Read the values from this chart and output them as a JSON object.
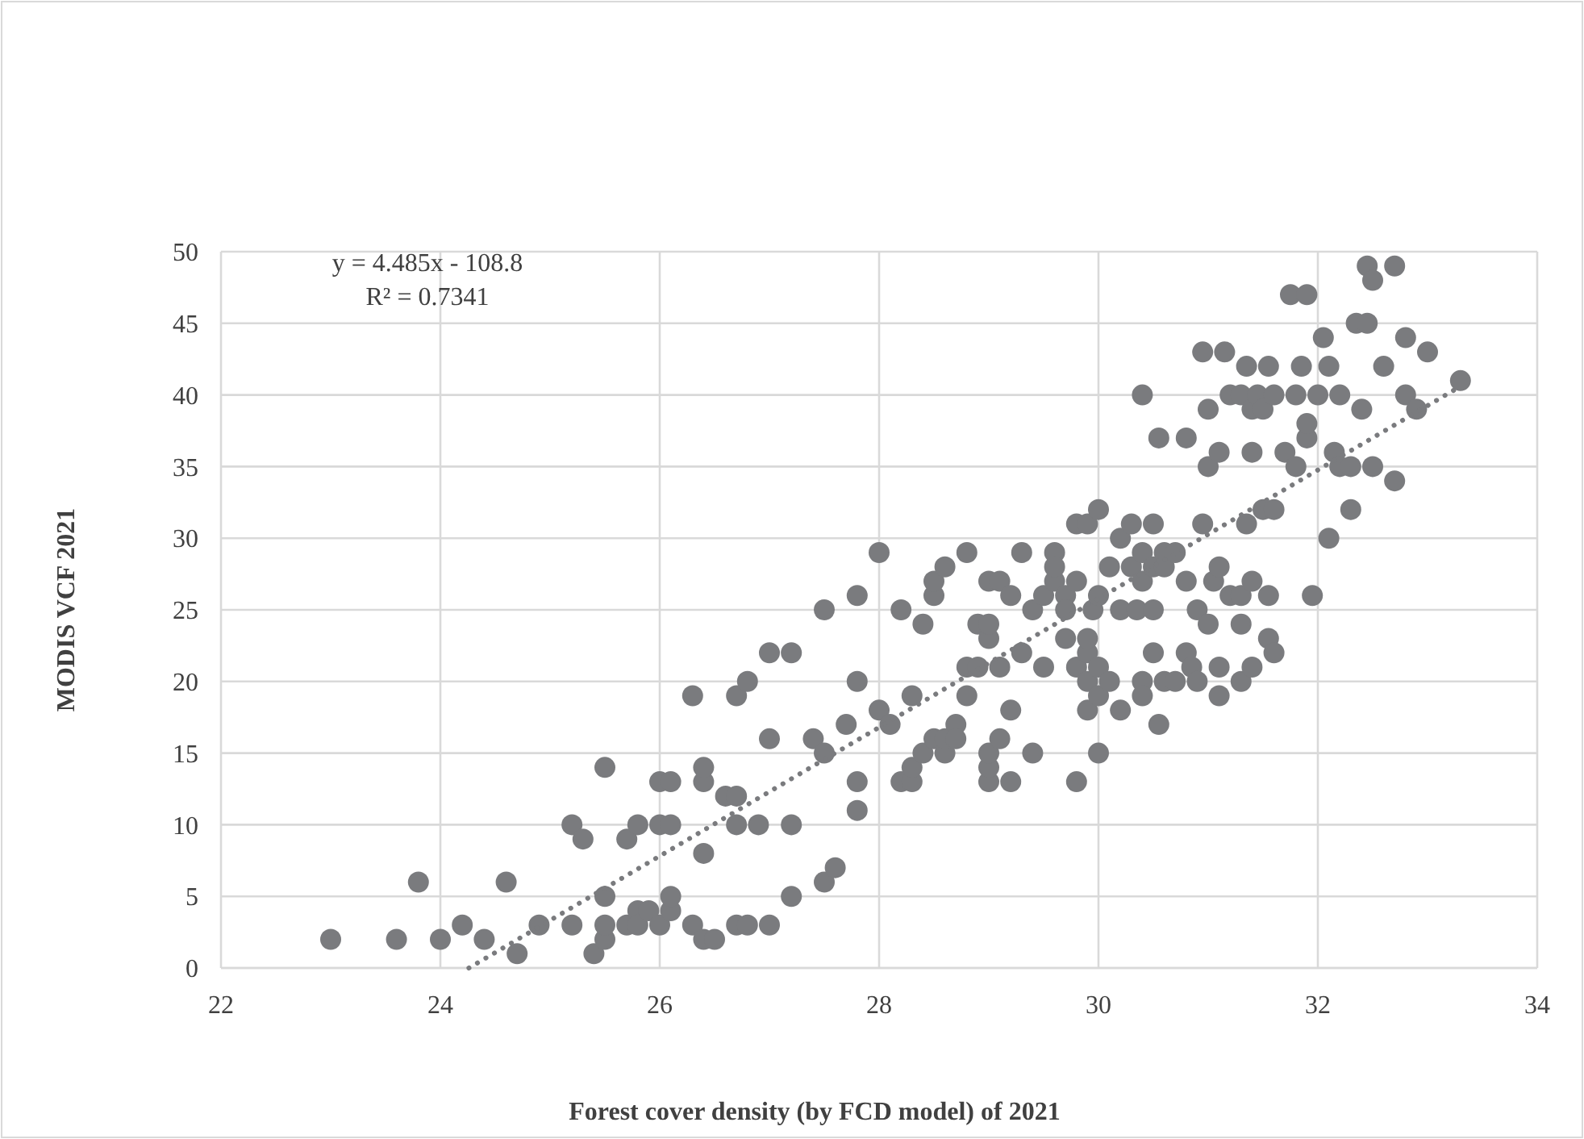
{
  "chart_data": {
    "type": "scatter",
    "xlabel": "Forest cover density (by FCD model) of 2021",
    "ylabel": "MODIS VCF 2021",
    "annotations": [
      "y = 4.485x - 108.8",
      "R² = 0.7341"
    ],
    "xlim": [
      22,
      34
    ],
    "xticks": [
      22,
      24,
      26,
      28,
      30,
      32,
      34
    ],
    "ylim": [
      0,
      50
    ],
    "yticks": [
      0,
      5,
      10,
      15,
      20,
      25,
      30,
      35,
      40,
      45,
      50
    ],
    "grid": true,
    "marker": "circle",
    "series": [
      {
        "color": "#7a7b7e",
        "x": [
          23.0,
          23.6,
          23.8,
          24.0,
          24.2,
          24.4,
          24.6,
          24.7,
          24.9,
          25.2,
          25.3,
          25.2,
          25.4,
          25.5,
          25.5,
          25.5,
          25.5,
          25.7,
          25.7,
          25.8,
          25.8,
          25.8,
          25.9,
          26.0,
          26.0,
          26.1,
          26.0,
          26.1,
          26.1,
          26.1,
          26.3,
          26.3,
          26.4,
          26.4,
          26.4,
          26.4,
          26.5,
          26.7,
          26.6,
          26.7,
          26.7,
          26.7,
          26.8,
          26.9,
          26.8,
          27.0,
          27.0,
          27.0,
          27.2,
          27.2,
          27.2,
          27.4,
          27.5,
          27.5,
          27.5,
          27.6,
          27.7,
          27.8,
          27.8,
          27.8,
          27.8,
          28.0,
          28.0,
          28.1,
          28.2,
          28.3,
          28.3,
          28.2,
          28.3,
          28.4,
          28.4,
          28.5,
          28.5,
          28.5,
          28.6,
          28.6,
          28.6,
          28.7,
          28.7,
          28.8,
          28.8,
          28.9,
          28.9,
          28.8,
          29.0,
          29.0,
          29.0,
          29.0,
          29.0,
          29.0,
          29.1,
          29.1,
          29.1,
          29.2,
          29.2,
          29.2,
          29.3,
          29.3,
          29.4,
          29.4,
          29.5,
          29.5,
          29.6,
          29.6,
          29.6,
          29.7,
          29.7,
          29.7,
          29.8,
          29.8,
          29.8,
          29.8,
          29.9,
          29.9,
          29.9,
          29.9,
          29.9,
          29.95,
          30.0,
          30.0,
          30.0,
          30.0,
          30.0,
          30.1,
          30.1,
          30.2,
          30.2,
          30.2,
          30.3,
          30.3,
          30.35,
          30.4,
          30.4,
          30.4,
          30.4,
          30.4,
          30.5,
          30.5,
          30.5,
          30.5,
          30.55,
          30.55,
          30.6,
          30.6,
          30.6,
          30.7,
          30.7,
          30.8,
          30.8,
          30.8,
          30.85,
          30.9,
          30.9,
          30.95,
          30.95,
          31.0,
          31.0,
          31.0,
          31.05,
          31.1,
          31.1,
          31.1,
          31.1,
          31.15,
          31.2,
          31.2,
          31.3,
          31.3,
          31.3,
          31.3,
          31.35,
          31.35,
          31.4,
          31.4,
          31.4,
          31.4,
          31.45,
          31.5,
          31.5,
          31.55,
          31.55,
          31.55,
          31.6,
          31.6,
          31.6,
          31.7,
          31.75,
          31.8,
          31.8,
          31.85,
          31.9,
          31.9,
          31.9,
          31.95,
          32.0,
          32.05,
          32.1,
          32.1,
          32.15,
          32.2,
          32.2,
          32.3,
          32.3,
          32.35,
          32.4,
          32.45,
          32.45,
          32.5,
          32.5,
          32.6,
          32.7,
          32.7,
          32.8,
          32.8,
          32.9,
          33.0,
          33.3
        ],
        "values": [
          2,
          2,
          6,
          2,
          3,
          2,
          6,
          1,
          3,
          10,
          9,
          3,
          1,
          2,
          3,
          14,
          5,
          3,
          9,
          10,
          4,
          3,
          4,
          3,
          13,
          13,
          10,
          10,
          4,
          5,
          3,
          19,
          13,
          8,
          14,
          2,
          2,
          10,
          12,
          3,
          12,
          19,
          20,
          10,
          3,
          22,
          3,
          16,
          22,
          5,
          10,
          16,
          6,
          25,
          15,
          7,
          17,
          26,
          13,
          20,
          11,
          29,
          18,
          17,
          13,
          13,
          14,
          25,
          19,
          15,
          24,
          16,
          26,
          27,
          15,
          16,
          28,
          17,
          16,
          19,
          21,
          21,
          24,
          29,
          13,
          14,
          15,
          23,
          24,
          27,
          16,
          27,
          21,
          18,
          13,
          26,
          29,
          22,
          25,
          15,
          21,
          26,
          27,
          29,
          28,
          23,
          26,
          25,
          31,
          13,
          21,
          27,
          22,
          20,
          23,
          18,
          31,
          25,
          15,
          19,
          21,
          32,
          26,
          28,
          20,
          25,
          30,
          18,
          28,
          31,
          25,
          29,
          40,
          20,
          19,
          27,
          28,
          22,
          31,
          25,
          37,
          17,
          20,
          29,
          28,
          20,
          29,
          37,
          22,
          27,
          21,
          25,
          20,
          43,
          31,
          35,
          39,
          24,
          27,
          28,
          19,
          21,
          36,
          43,
          40,
          26,
          26,
          40,
          24,
          20,
          31,
          42,
          36,
          39,
          21,
          27,
          40,
          39,
          32,
          42,
          23,
          26,
          22,
          40,
          32,
          36,
          47,
          35,
          40,
          42,
          37,
          47,
          38,
          26,
          40,
          44,
          42,
          30,
          36,
          35,
          40,
          32,
          35,
          45,
          39,
          45,
          49,
          48,
          35,
          42,
          34,
          49,
          44,
          40,
          39,
          43,
          41
        ]
      },
      {
        "type": "line",
        "color": "#7a7b7e",
        "line_style": "dotted",
        "marker": "none",
        "x": [
          24.26,
          33.3
        ],
        "values": [
          0,
          40.6
        ]
      }
    ]
  }
}
